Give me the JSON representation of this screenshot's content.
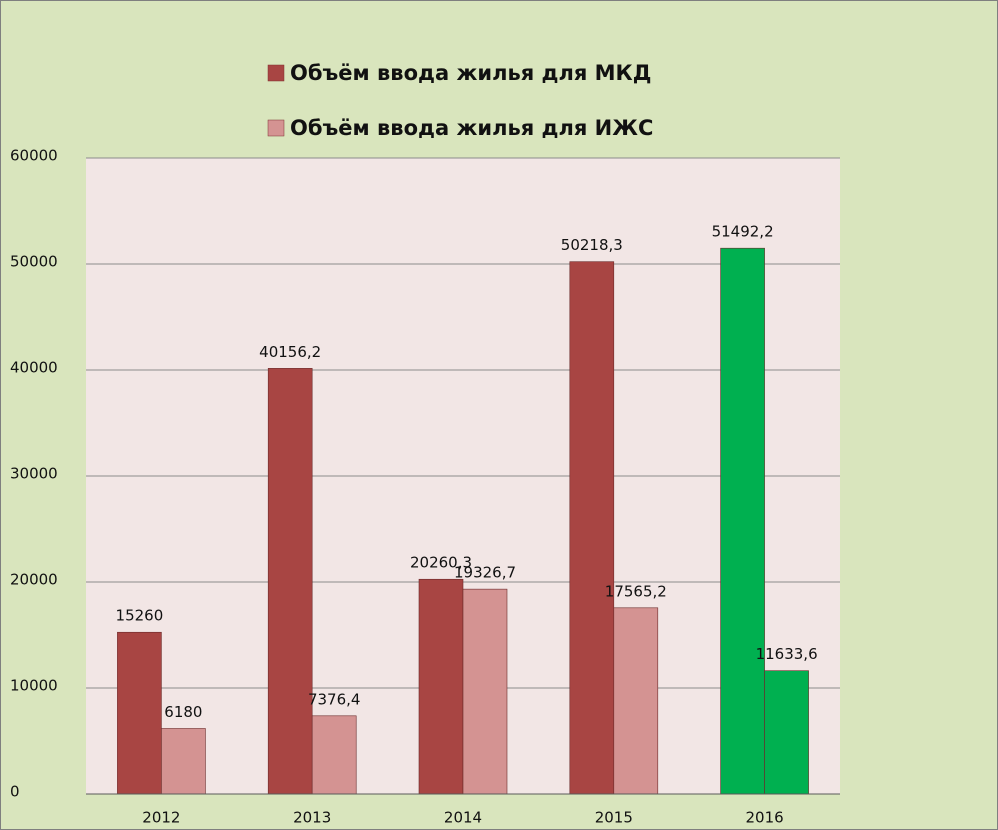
{
  "chart_data": {
    "type": "bar",
    "categories": [
      "2012",
      "2013",
      "2014",
      "2015",
      "2016"
    ],
    "series": [
      {
        "name": "Объём ввода жилья для МКД",
        "color": "#a84543",
        "colors": [
          "#a84543",
          "#a84543",
          "#a84543",
          "#a84543",
          "#00b050"
        ],
        "values": [
          15260,
          40156.2,
          20260.3,
          50218.3,
          51492.2
        ],
        "value_labels": [
          "15260",
          "40156,2",
          "20260,3",
          "50218,3",
          "51492,2"
        ]
      },
      {
        "name": "Объём ввода жилья для ИЖС",
        "color": "#d49392",
        "colors": [
          "#d49392",
          "#d49392",
          "#d49392",
          "#d49392",
          "#00b050"
        ],
        "values": [
          6180,
          7376.4,
          19326.7,
          17565.2,
          11633.6
        ],
        "value_labels": [
          "6180",
          "7376,4",
          "19326,7",
          "17565,2",
          "11633,6"
        ]
      }
    ],
    "ylim": [
      0,
      60000
    ],
    "yticks": [
      0,
      10000,
      20000,
      30000,
      40000,
      50000,
      60000
    ],
    "grid": true
  }
}
